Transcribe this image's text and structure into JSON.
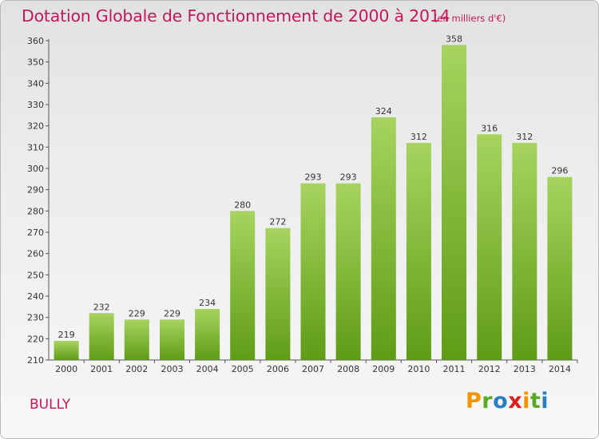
{
  "header": {
    "title": "Dotation Globale de Fonctionnement de 2000 à 2014",
    "unit": "(en milliers d'€)"
  },
  "footer": {
    "commune": "BULLY",
    "logo_parts": [
      "P",
      "r",
      "o",
      "x",
      "i",
      "t",
      "i"
    ]
  },
  "colors": {
    "title": "#c2185b",
    "bar_top": "#a6d45f",
    "bar_bottom": "#5f9c16",
    "logo": [
      "#f29400",
      "#5aaa2a",
      "#2a7fc0",
      "#d9201f"
    ]
  },
  "chart_data": {
    "type": "bar",
    "title": "Dotation Globale de Fonctionnement de 2000 à 2014",
    "xlabel": "",
    "ylabel": "",
    "categories": [
      "2000",
      "2001",
      "2002",
      "2003",
      "2004",
      "2005",
      "2006",
      "2007",
      "2008",
      "2009",
      "2010",
      "2011",
      "2012",
      "2013",
      "2014"
    ],
    "values": [
      219,
      232,
      229,
      229,
      234,
      280,
      272,
      293,
      293,
      324,
      312,
      358,
      316,
      312,
      296
    ],
    "ylim": [
      210,
      360
    ],
    "yticks": [
      210,
      220,
      230,
      240,
      250,
      260,
      270,
      280,
      290,
      300,
      310,
      320,
      330,
      340,
      350,
      360
    ],
    "grid": false,
    "data_labels": true
  }
}
